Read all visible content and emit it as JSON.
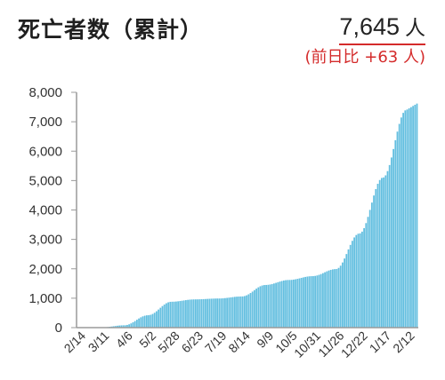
{
  "header": {
    "title": "死亡者数（累計）",
    "total_value": "7,645",
    "total_unit": "人",
    "delta_text": "(前日比 +63 人)"
  },
  "colors": {
    "bar": "#64bfe0",
    "axis": "#9a9a9a",
    "grid": "#cfcfcf",
    "accent": "#d42b2b"
  },
  "chart_data": {
    "type": "bar",
    "title": "死亡者数（累計）",
    "xlabel": "",
    "ylabel": "",
    "ylim": [
      0,
      8000
    ],
    "yticks": [
      0,
      1000,
      2000,
      3000,
      4000,
      5000,
      6000,
      7000,
      8000
    ],
    "ytick_labels": [
      "0",
      "1,000",
      "2,000",
      "3,000",
      "4,000",
      "5,000",
      "6,000",
      "7,000",
      "8,000"
    ],
    "xtick_labels": [
      "2/14",
      "3/11",
      "4/6",
      "5/2",
      "5/28",
      "6/23",
      "7/19",
      "8/14",
      "9/9",
      "10/5",
      "10/31",
      "11/26",
      "12/22",
      "1/17",
      "2/12"
    ],
    "grid": false,
    "series": [
      {
        "values_by_tick": [
          0,
          5,
          80,
          420,
          880,
          960,
          990,
          1060,
          1450,
          1620,
          1750,
          1990,
          3200,
          5100,
          7400
        ],
        "final_value": 7645
      }
    ]
  }
}
